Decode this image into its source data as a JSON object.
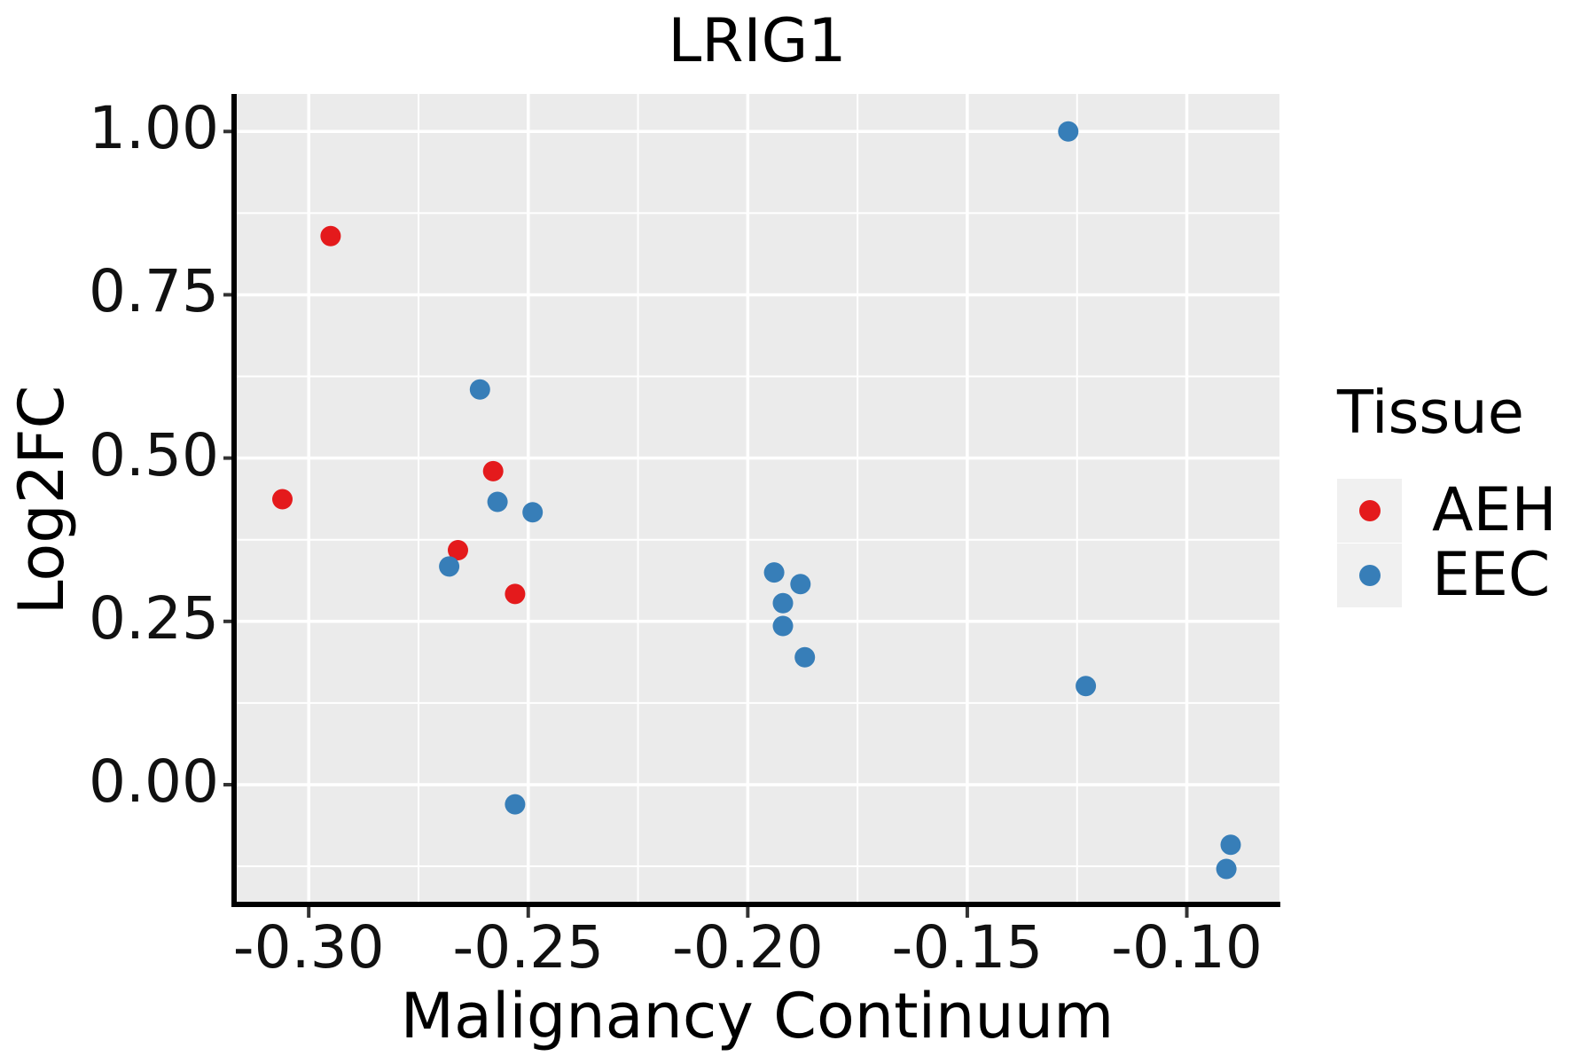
{
  "figure": {
    "title": "LRIG1",
    "x_axis_label": "Malignancy Continuum",
    "y_axis_label": "Log2FC",
    "legend": {
      "title": "Tissue",
      "items": [
        {
          "label": "AEH",
          "color": "#E41A1C"
        },
        {
          "label": "EEC",
          "color": "#377EB8"
        }
      ]
    }
  },
  "chart_data": {
    "type": "scatter",
    "title": "LRIG1",
    "xlabel": "Malignancy Continuum",
    "ylabel": "Log2FC",
    "xlim": [
      -0.3168,
      -0.0789
    ],
    "ylim": [
      -0.186,
      1.0574
    ],
    "x_ticks": {
      "values": [
        -0.3,
        -0.25,
        -0.2,
        -0.15,
        -0.1
      ],
      "labels": [
        "-0.30",
        "-0.25",
        "-0.20",
        "-0.15",
        "-0.10"
      ]
    },
    "y_ticks": {
      "values": [
        0.0,
        0.25,
        0.5,
        0.75,
        1.0
      ],
      "labels": [
        "0.00",
        "0.25",
        "0.50",
        "0.75",
        "1.00"
      ]
    },
    "x_minor_gridlines": [
      -0.275,
      -0.225,
      -0.175,
      -0.125
    ],
    "y_minor_gridlines": [
      -0.125,
      0.125,
      0.375,
      0.625,
      0.875
    ],
    "grid": "major+minor white on gray panel",
    "legend_position": "right",
    "series": [
      {
        "name": "AEH",
        "color": "#E41A1C",
        "points": [
          [
            -0.295,
            0.84
          ],
          [
            -0.306,
            0.437
          ],
          [
            -0.258,
            0.48
          ],
          [
            -0.266,
            0.359
          ],
          [
            -0.253,
            0.292
          ]
        ]
      },
      {
        "name": "EEC",
        "color": "#377EB8",
        "points": [
          [
            -0.261,
            0.605
          ],
          [
            -0.257,
            0.433
          ],
          [
            -0.249,
            0.417
          ],
          [
            -0.268,
            0.334
          ],
          [
            -0.253,
            -0.03
          ],
          [
            -0.194,
            0.325
          ],
          [
            -0.188,
            0.307
          ],
          [
            -0.192,
            0.278
          ],
          [
            -0.192,
            0.243
          ],
          [
            -0.187,
            0.195
          ],
          [
            -0.127,
            1.0
          ],
          [
            -0.123,
            0.151
          ],
          [
            -0.09,
            -0.092
          ],
          [
            -0.091,
            -0.129
          ]
        ]
      }
    ],
    "colors": {
      "panel_background": "#EBEBEB",
      "gridline": "#FFFFFF",
      "axis_line": "#000000",
      "tick_mark": "#333333",
      "text": "#000000",
      "legend_key_background": "#F0F0F0"
    }
  }
}
